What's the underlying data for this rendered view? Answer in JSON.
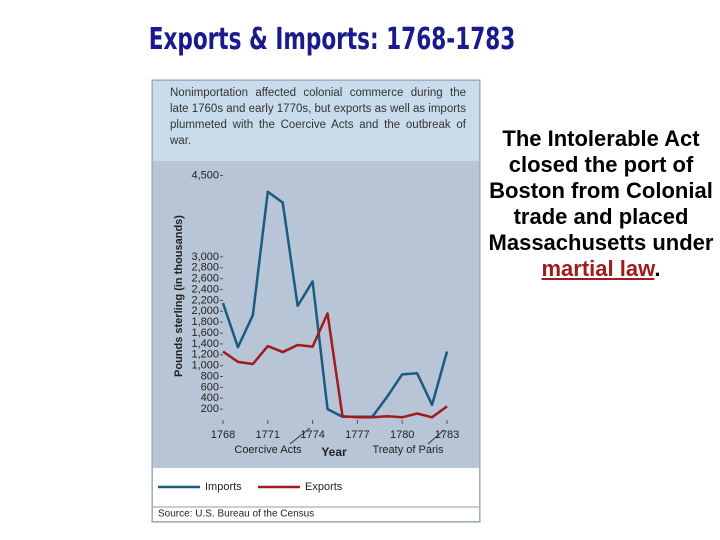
{
  "slide": {
    "title": "Exports & Imports:  1768-1783",
    "text": "The Intolerable Act closed the port of Boston from Colonial trade and placed Massachusetts under",
    "link": "martial law",
    "text_end": "."
  },
  "chart_data": {
    "type": "line",
    "caption": "Nonimportation affected colonial commerce during the late 1760s and early 1770s, but exports as well as imports plummeted with the Coercive Acts and the outbreak of war.",
    "y_label": "Pounds sterling (in thousands)",
    "x_label": "Year",
    "annotations": [
      "Coercive Acts",
      "Treaty of Paris"
    ],
    "source": "Source: U.S. Bureau of the Census",
    "x": [
      1768,
      1769,
      1770,
      1771,
      1772,
      1773,
      1774,
      1775,
      1776,
      1777,
      1778,
      1779,
      1780,
      1781,
      1782,
      1783
    ],
    "xlim": [
      1768,
      1783
    ],
    "xticks": [
      1768,
      1771,
      1774,
      1777,
      1780,
      1783
    ],
    "ylim": [
      0,
      4600
    ],
    "yticks": [
      200,
      400,
      600,
      800,
      {
        "value": 1000,
        "label": "1,000"
      },
      {
        "value": 1200,
        "label": "1,200"
      },
      {
        "value": 1400,
        "label": "1,400"
      },
      {
        "value": 1600,
        "label": "1,600"
      },
      {
        "value": 1800,
        "label": "1,800"
      },
      {
        "value": 2000,
        "label": "2,000"
      },
      {
        "value": 2200,
        "label": "2,200"
      },
      {
        "value": 2400,
        "label": "2,400"
      },
      {
        "value": 2600,
        "label": "2,600"
      },
      {
        "value": 2800,
        "label": "2,800"
      },
      {
        "value": 3000,
        "label": "3,000"
      },
      {
        "value": 4500,
        "label": "4,500"
      }
    ],
    "series": [
      {
        "name": "Imports",
        "color": "#1d5a80",
        "values": [
          2150,
          1340,
          1930,
          4200,
          4000,
          2100,
          2550,
          200,
          60,
          60,
          60,
          430,
          840,
          860,
          280,
          1260
        ]
      },
      {
        "name": "Exports",
        "color": "#a01c1c",
        "values": [
          1260,
          1070,
          1030,
          1360,
          1250,
          1380,
          1350,
          1960,
          70,
          50,
          50,
          70,
          50,
          120,
          50,
          250
        ]
      }
    ]
  }
}
